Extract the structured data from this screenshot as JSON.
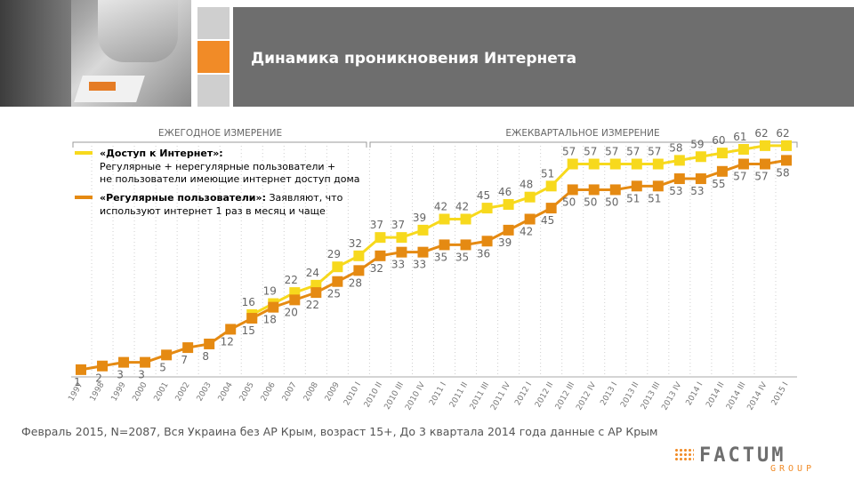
{
  "title": "Динамика проникновения Интернета",
  "sections": {
    "annual": "ЕЖЕГОДНОЕ ИЗМЕРЕНИЕ",
    "quarterly": "ЕЖЕКВАРТАЛЬНОЕ ИЗМЕРЕНИЕ"
  },
  "legend": {
    "access_bold": "«Доступ к Интернет»:",
    "access_line1": "Регулярные + нерегулярные пользователи +",
    "access_line2": "не пользователи имеющие интернет доступ дома",
    "regular_bold": "«Регулярные пользователи»:",
    "regular_rest": " Заявляют, что",
    "regular_line2": "используют интернет 1 раз в месяц и чаще"
  },
  "footer": "Февраль 2015, N=2087, Вся Украина без АР Крым, возраст 15+, До 3 квартала 2014 года данные с АР Крым",
  "logo": {
    "main": "FACTUM",
    "sub": "GROUP"
  },
  "colors": {
    "access": "#f7d91d",
    "regular": "#e58a12",
    "band": "#6e6e6e",
    "accent": "#f18b27"
  },
  "chart_data": {
    "type": "line",
    "categories": [
      "1997",
      "1998",
      "1999",
      "2000",
      "2001",
      "2002",
      "2003",
      "2004",
      "2005",
      "2006",
      "2007",
      "2008",
      "2009",
      "2010 I",
      "2010 II",
      "2010 III",
      "2010 IV",
      "2011 I",
      "2011 II",
      "2011 III",
      "2011 IV",
      "2012 I",
      "2012 II",
      "2012 III",
      "2012 IV",
      "2013 I",
      "2013 II",
      "2013 III",
      "2013 IV",
      "2014 I",
      "2014 II",
      "2014 III",
      "2014 IV",
      "2015 I"
    ],
    "series": [
      {
        "name": "«Доступ к Интернет»",
        "values": [
          null,
          null,
          null,
          null,
          null,
          null,
          null,
          null,
          16,
          19,
          22,
          24,
          29,
          32,
          37,
          37,
          39,
          42,
          42,
          45,
          46,
          48,
          51,
          57,
          57,
          57,
          57,
          57,
          58,
          59,
          60,
          61,
          62,
          62
        ]
      },
      {
        "name": "«Регулярные пользователи»",
        "values": [
          1,
          2,
          3,
          3,
          5,
          7,
          8,
          12,
          15,
          18,
          20,
          22,
          25,
          28,
          32,
          33,
          33,
          35,
          35,
          36,
          39,
          42,
          45,
          50,
          50,
          50,
          51,
          51,
          53,
          53,
          55,
          57,
          57,
          58
        ]
      }
    ],
    "ylim": [
      0,
      65
    ]
  }
}
